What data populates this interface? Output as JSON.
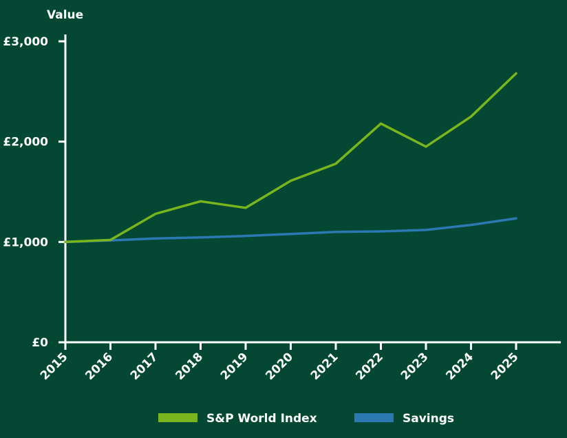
{
  "chart_data": {
    "type": "line",
    "title": "",
    "ylabel": "Value",
    "xlabel": "",
    "categories": [
      "2015",
      "2016",
      "2017",
      "2018",
      "2019",
      "2020",
      "2021",
      "2022",
      "2023",
      "2024",
      "2025"
    ],
    "x_ticks": [
      "2015",
      "2016",
      "2017",
      "2018",
      "2019",
      "2020",
      "2021",
      "2022",
      "2023",
      "2024",
      "2025"
    ],
    "y_ticks": [
      {
        "value": 0,
        "label": "£0"
      },
      {
        "value": 1000,
        "label": "£1,000"
      },
      {
        "value": 2000,
        "label": "£2,000"
      },
      {
        "value": 3000,
        "label": "£3,000"
      }
    ],
    "ylim": [
      0,
      3000
    ],
    "grid": false,
    "legend_position": "bottom",
    "series": [
      {
        "name": "S&P World Index",
        "color": "#7ab51d",
        "values": [
          1000,
          1020,
          1280,
          1405,
          1340,
          1610,
          1780,
          2180,
          1950,
          2250,
          2680
        ]
      },
      {
        "name": "Savings",
        "color": "#2b78b3",
        "values": [
          1000,
          1015,
          1035,
          1045,
          1060,
          1080,
          1100,
          1105,
          1120,
          1170,
          1235
        ]
      }
    ]
  },
  "colors": {
    "background": "#044833",
    "axis": "#ffffff",
    "text": "#ffffff"
  }
}
